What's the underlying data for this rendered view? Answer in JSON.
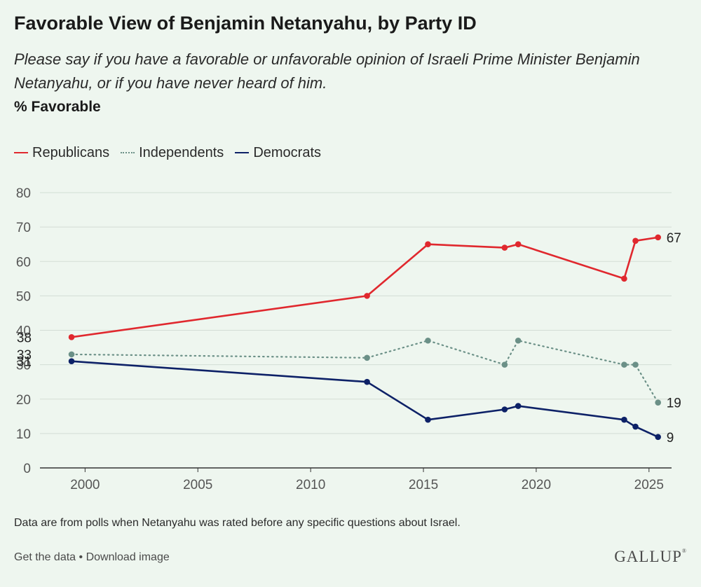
{
  "header": {
    "title": "Favorable View of Benjamin Netanyahu, by Party ID",
    "subtitle": "Please say if you have a favorable or unfavorable opinion of Israeli Prime Minister Benjamin Netanyahu, or if you have never heard of him.",
    "unit_label": "% Favorable"
  },
  "chart_data": {
    "type": "line",
    "title": "Favorable View of Benjamin Netanyahu, by Party ID",
    "ylabel": "% Favorable",
    "xlabel": "",
    "ylim": [
      0,
      80
    ],
    "xlim": [
      1998,
      2026
    ],
    "y_ticks": [
      0,
      10,
      20,
      30,
      40,
      50,
      60,
      70,
      80
    ],
    "x_ticks": [
      2000,
      2005,
      2010,
      2015,
      2020,
      2025
    ],
    "grid": true,
    "legend_position": "top-left",
    "series": [
      {
        "name": "Republicans",
        "color": "#e0282e",
        "style": "solid",
        "x": [
          1999.4,
          2012.5,
          2015.2,
          2018.6,
          2019.2,
          2023.9,
          2024.4,
          2025.4
        ],
        "values": [
          38,
          50,
          65,
          64,
          65,
          55,
          66,
          67
        ],
        "start_label": "38",
        "end_label": "67"
      },
      {
        "name": "Independents",
        "color": "#6b9087",
        "style": "dotted",
        "x": [
          1999.4,
          2012.5,
          2015.2,
          2018.6,
          2019.2,
          2023.9,
          2024.4,
          2025.4
        ],
        "values": [
          33,
          32,
          37,
          30,
          37,
          30,
          30,
          19
        ],
        "start_label": "33",
        "end_label": "19"
      },
      {
        "name": "Democrats",
        "color": "#0d2167",
        "style": "solid",
        "x": [
          1999.4,
          2012.5,
          2015.2,
          2018.6,
          2019.2,
          2023.9,
          2024.4,
          2025.4
        ],
        "values": [
          31,
          25,
          14,
          17,
          18,
          14,
          12,
          9
        ],
        "start_label": "31",
        "end_label": "9"
      }
    ]
  },
  "footnote": "Data are from polls when Netanyahu was rated before any specific questions about Israel.",
  "links": {
    "get_data": "Get the data",
    "separator": " • ",
    "download": "Download image"
  },
  "logo": {
    "text": "GALLUP",
    "mark": "®"
  }
}
